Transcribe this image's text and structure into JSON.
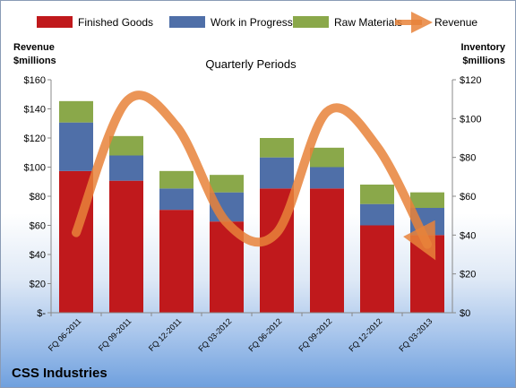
{
  "company": "CSS Industries",
  "left_axis_title": [
    "Revenue",
    "$millions"
  ],
  "right_axis_title": [
    "Inventory",
    "$millions"
  ],
  "colors": {
    "finished_goods": "#c0191c",
    "work_in_progress": "#4f6fa8",
    "raw_materials": "#8aa84a",
    "revenue": "#e8823a"
  },
  "chart_data": {
    "type": "bar",
    "stacked": true,
    "title": "Quarterly Periods",
    "categories": [
      "FQ 06-2011",
      "FQ 09-2011",
      "FQ 12-2011",
      "FQ 03-2012",
      "FQ 06-2012",
      "FQ 09-2012",
      "FQ 12-2012",
      "FQ 03-2013"
    ],
    "series": [
      {
        "name": "Finished Goods",
        "axis": "right",
        "values": [
          73,
          68,
          53,
          47,
          64,
          64,
          45,
          40
        ]
      },
      {
        "name": "Work in Progress",
        "axis": "right",
        "values": [
          25,
          13,
          11,
          15,
          16,
          11,
          11,
          14
        ]
      },
      {
        "name": "Raw Materials",
        "axis": "right",
        "values": [
          11,
          10,
          9,
          9,
          10,
          10,
          10,
          8
        ]
      },
      {
        "name": "Revenue",
        "type": "line",
        "axis": "left",
        "values": [
          55,
          145,
          128,
          62,
          55,
          138,
          114,
          47
        ]
      }
    ],
    "y_left": {
      "label": "Revenue $millions",
      "range": [
        0,
        160
      ],
      "ticks": [
        "$-",
        "$20",
        "$40",
        "$60",
        "$80",
        "$100",
        "$120",
        "$140",
        "$160"
      ]
    },
    "y_right": {
      "label": "Inventory $millions",
      "range": [
        0,
        120
      ],
      "ticks": [
        "$0",
        "$20",
        "$40",
        "$60",
        "$80",
        "$100",
        "$120"
      ]
    },
    "grid": false,
    "legend": "top"
  }
}
